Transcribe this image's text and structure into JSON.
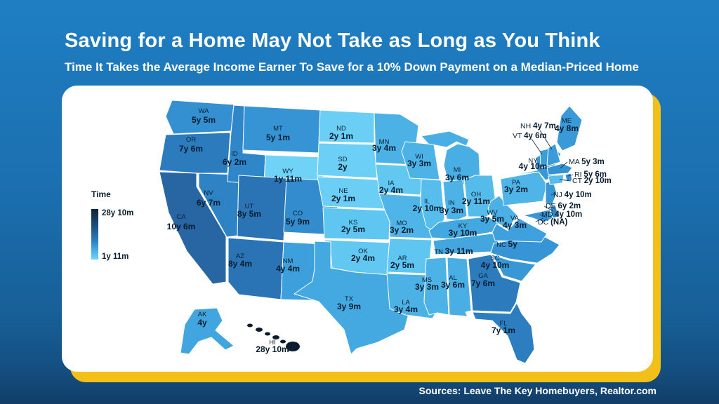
{
  "header": {
    "title": "Saving for a Home May Not Take as Long as You Think",
    "subtitle": "Time It Takes the Average Income Earner To Save for a 10% Down Payment on a Median-Priced Home"
  },
  "legend": {
    "title": "Time",
    "max_label": "28y 10m",
    "min_label": "1y 11m"
  },
  "footer": {
    "sources": "Sources: Leave The Key Homebuyers, Realtor.com"
  },
  "colors": {
    "page_bg_top": "#1f7ec3",
    "page_bg_bottom": "#123d68",
    "card_bg": "#ffffff",
    "accent_yellow": "#f3c01a",
    "title_color": "#ffffff",
    "label_color": "#0b2030"
  },
  "chart_data": {
    "type": "heatmap",
    "subtype": "us-choropleth-map",
    "title": "Time It Takes the Average Income Earner To Save for a 10% Down Payment on a Median-Priced Home",
    "legend_title": "Time",
    "value_unit": "years and months",
    "range": {
      "min_label": "1y 11m",
      "min_months": 23,
      "min_state": "WY",
      "max_label": "28y 10m",
      "max_months": 346,
      "max_state": "HI"
    },
    "color_scale_stops": [
      [
        23,
        "#6fd2f7"
      ],
      [
        29,
        "#5fc6f1"
      ],
      [
        36,
        "#52b9ea"
      ],
      [
        43,
        "#47ace3"
      ],
      [
        52,
        "#3d9fdb"
      ],
      [
        62,
        "#3593d3"
      ],
      [
        75,
        "#2f86c8"
      ],
      [
        92,
        "#2b79bb"
      ],
      [
        128,
        "#2864a2"
      ],
      [
        200,
        "#1a416e"
      ],
      [
        346,
        "#0c1c30"
      ]
    ],
    "states": [
      {
        "code": "WA",
        "value": "5y 5m",
        "months": 65
      },
      {
        "code": "OR",
        "value": "7y 6m",
        "months": 90
      },
      {
        "code": "CA",
        "value": "10y 6m",
        "months": 126
      },
      {
        "code": "NV",
        "value": "6y 7m",
        "months": 79
      },
      {
        "code": "ID",
        "value": "6y 2m",
        "months": 74
      },
      {
        "code": "MT",
        "value": "5y 1m",
        "months": 61
      },
      {
        "code": "WY",
        "value": "1y 11m",
        "months": 23
      },
      {
        "code": "UT",
        "value": "8y 5m",
        "months": 101
      },
      {
        "code": "CO",
        "value": "5y 9m",
        "months": 69
      },
      {
        "code": "AZ",
        "value": "8y 4m",
        "months": 100
      },
      {
        "code": "NM",
        "value": "4y 4m",
        "months": 52
      },
      {
        "code": "ND",
        "value": "2y 1m",
        "months": 25
      },
      {
        "code": "SD",
        "value": "2y",
        "months": 24
      },
      {
        "code": "NE",
        "value": "2y 1m",
        "months": 25
      },
      {
        "code": "KS",
        "value": "2y 5m",
        "months": 29
      },
      {
        "code": "OK",
        "value": "2y 4m",
        "months": 28
      },
      {
        "code": "TX",
        "value": "3y 9m",
        "months": 45
      },
      {
        "code": "MN",
        "value": "3y 4m",
        "months": 40
      },
      {
        "code": "IA",
        "value": "2y 4m",
        "months": 28
      },
      {
        "code": "MO",
        "value": "3y 2m",
        "months": 38
      },
      {
        "code": "AR",
        "value": "2y 5m",
        "months": 29
      },
      {
        "code": "LA",
        "value": "3y 4m",
        "months": 40
      },
      {
        "code": "WI",
        "value": "3y 3m",
        "months": 39
      },
      {
        "code": "MI",
        "value": "3y 6m",
        "months": 42
      },
      {
        "code": "IL",
        "value": "2y 10m",
        "months": 34
      },
      {
        "code": "IN",
        "value": "3y 3m",
        "months": 39
      },
      {
        "code": "OH",
        "value": "2y 11m",
        "months": 35
      },
      {
        "code": "KY",
        "value": "3y 10m",
        "months": 46
      },
      {
        "code": "TN",
        "value": "3y 11m",
        "months": 47
      },
      {
        "code": "MS",
        "value": "3y 3m",
        "months": 39
      },
      {
        "code": "AL",
        "value": "3y 6m",
        "months": 42
      },
      {
        "code": "GA",
        "value": "7y 6m",
        "months": 90
      },
      {
        "code": "FL",
        "value": "7y 1m",
        "months": 85
      },
      {
        "code": "SC",
        "value": "4y 10m",
        "months": 58
      },
      {
        "code": "NC",
        "value": "5y",
        "months": 60
      },
      {
        "code": "VA",
        "value": "4y 3m",
        "months": 51
      },
      {
        "code": "WV",
        "value": "3y 5m",
        "months": 41
      },
      {
        "code": "PA",
        "value": "3y 2m",
        "months": 38
      },
      {
        "code": "NY",
        "value": "4y 10m",
        "months": 58
      },
      {
        "code": "NJ",
        "value": "4y 10m",
        "months": 58
      },
      {
        "code": "DE",
        "value": "6y 2m",
        "months": 74
      },
      {
        "code": "MD",
        "value": "4y 10m",
        "months": 58
      },
      {
        "code": "DC",
        "value": "(NA)",
        "months": null
      },
      {
        "code": "CT",
        "value": "2y 10m",
        "months": 34
      },
      {
        "code": "RI",
        "value": "5y 6m",
        "months": 66
      },
      {
        "code": "MA",
        "value": "5y 3m",
        "months": 63
      },
      {
        "code": "VT",
        "value": "4y 6m",
        "months": 54
      },
      {
        "code": "NH",
        "value": "4y 7m",
        "months": 55
      },
      {
        "code": "ME",
        "value": "4y 8m",
        "months": 56
      },
      {
        "code": "AK",
        "value": "4y",
        "months": 48
      },
      {
        "code": "HI",
        "value": "28y 10m",
        "months": 346
      }
    ]
  }
}
